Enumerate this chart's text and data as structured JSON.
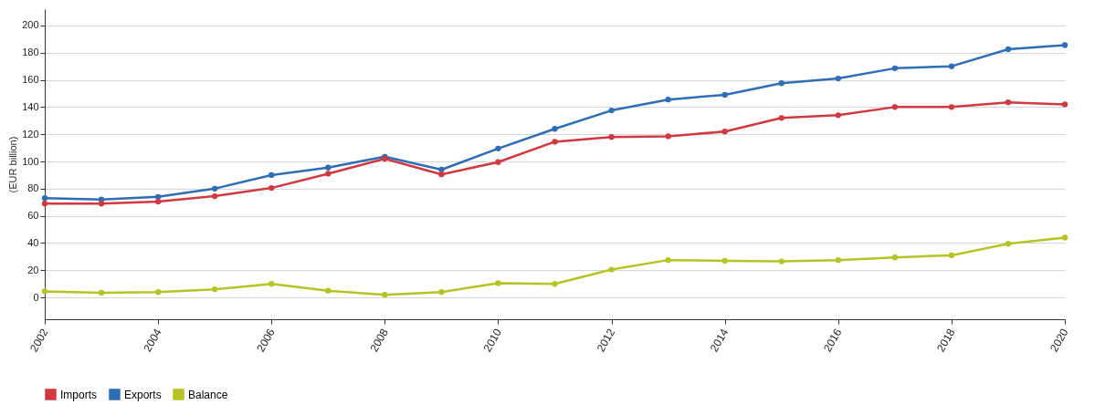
{
  "chart_data": {
    "type": "line",
    "ylabel": "(EUR billion)",
    "x": [
      2002,
      2003,
      2004,
      2005,
      2006,
      2007,
      2008,
      2009,
      2010,
      2011,
      2012,
      2013,
      2014,
      2015,
      2016,
      2017,
      2018,
      2019,
      2020
    ],
    "series": [
      {
        "name": "Imports",
        "color": "#d0393f",
        "values": [
          69,
          69,
          70.5,
          74.5,
          80.5,
          91,
          102,
          90.5,
          99.5,
          114.5,
          118,
          118.5,
          122,
          132,
          134,
          140,
          140,
          143.5,
          142
        ]
      },
      {
        "name": "Exports",
        "color": "#2f6db5",
        "values": [
          73,
          72,
          74,
          80,
          90,
          95.5,
          103.5,
          94,
          109.5,
          124,
          137.5,
          145.5,
          149,
          157.5,
          161,
          168.5,
          170,
          182.5,
          185.5
        ]
      },
      {
        "name": "Balance",
        "color": "#b5c424",
        "values": [
          4.5,
          3.5,
          4,
          6,
          10,
          5,
          2,
          4,
          10.5,
          10,
          20.5,
          27.5,
          27,
          26.5,
          27.5,
          29.5,
          31,
          39.5,
          44
        ]
      }
    ],
    "xlim": [
      2002,
      2020
    ],
    "xticks": [
      2002,
      2004,
      2006,
      2008,
      2010,
      2012,
      2014,
      2016,
      2018,
      2020
    ],
    "ylim": [
      -16,
      212
    ],
    "yticks": [
      0,
      20,
      40,
      60,
      80,
      100,
      120,
      140,
      160,
      180,
      200
    ],
    "grid": "y",
    "legend": "bottom",
    "marker": "circle",
    "line_style": "solid"
  }
}
